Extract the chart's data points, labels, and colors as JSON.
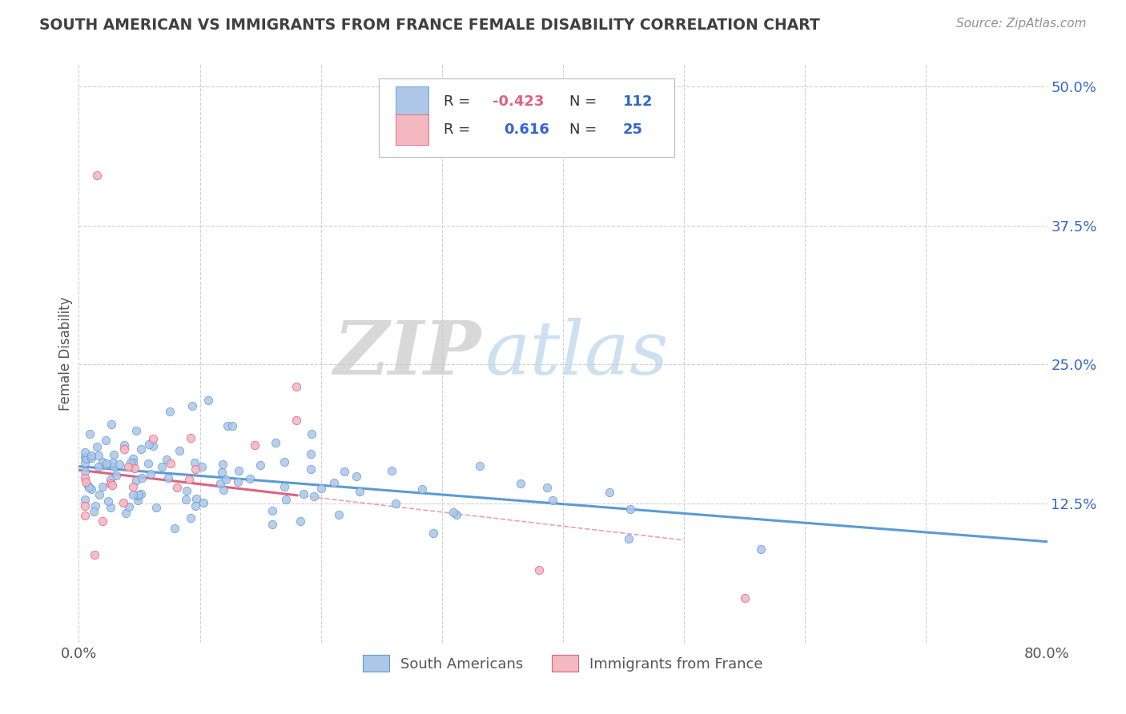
{
  "title": "SOUTH AMERICAN VS IMMIGRANTS FROM FRANCE FEMALE DISABILITY CORRELATION CHART",
  "source": "Source: ZipAtlas.com",
  "ylabel": "Female Disability",
  "watermark_zip": "ZIP",
  "watermark_atlas": "atlas",
  "xlim": [
    0.0,
    0.8
  ],
  "ylim": [
    0.0,
    0.52
  ],
  "ytick_positions": [
    0.0,
    0.125,
    0.25,
    0.375,
    0.5
  ],
  "ytick_labels": [
    "",
    "12.5%",
    "25.0%",
    "37.5%",
    "50.0%"
  ],
  "r1": -0.423,
  "n1": 112,
  "r2": 0.616,
  "n2": 25,
  "color1": "#aec6e8",
  "color2": "#f4b8c1",
  "edge_color1": "#5b9bd5",
  "edge_color2": "#e06080",
  "line_color1": "#5b9bd5",
  "line_color2": "#e06080",
  "title_color": "#404040",
  "source_color": "#909090",
  "blue_text": "#3366cc",
  "dark_text": "#333333",
  "background_color": "#ffffff",
  "grid_color": "#d0d0d0",
  "legend_r_color1": "#e06080",
  "legend_r_color2": "#3366cc"
}
